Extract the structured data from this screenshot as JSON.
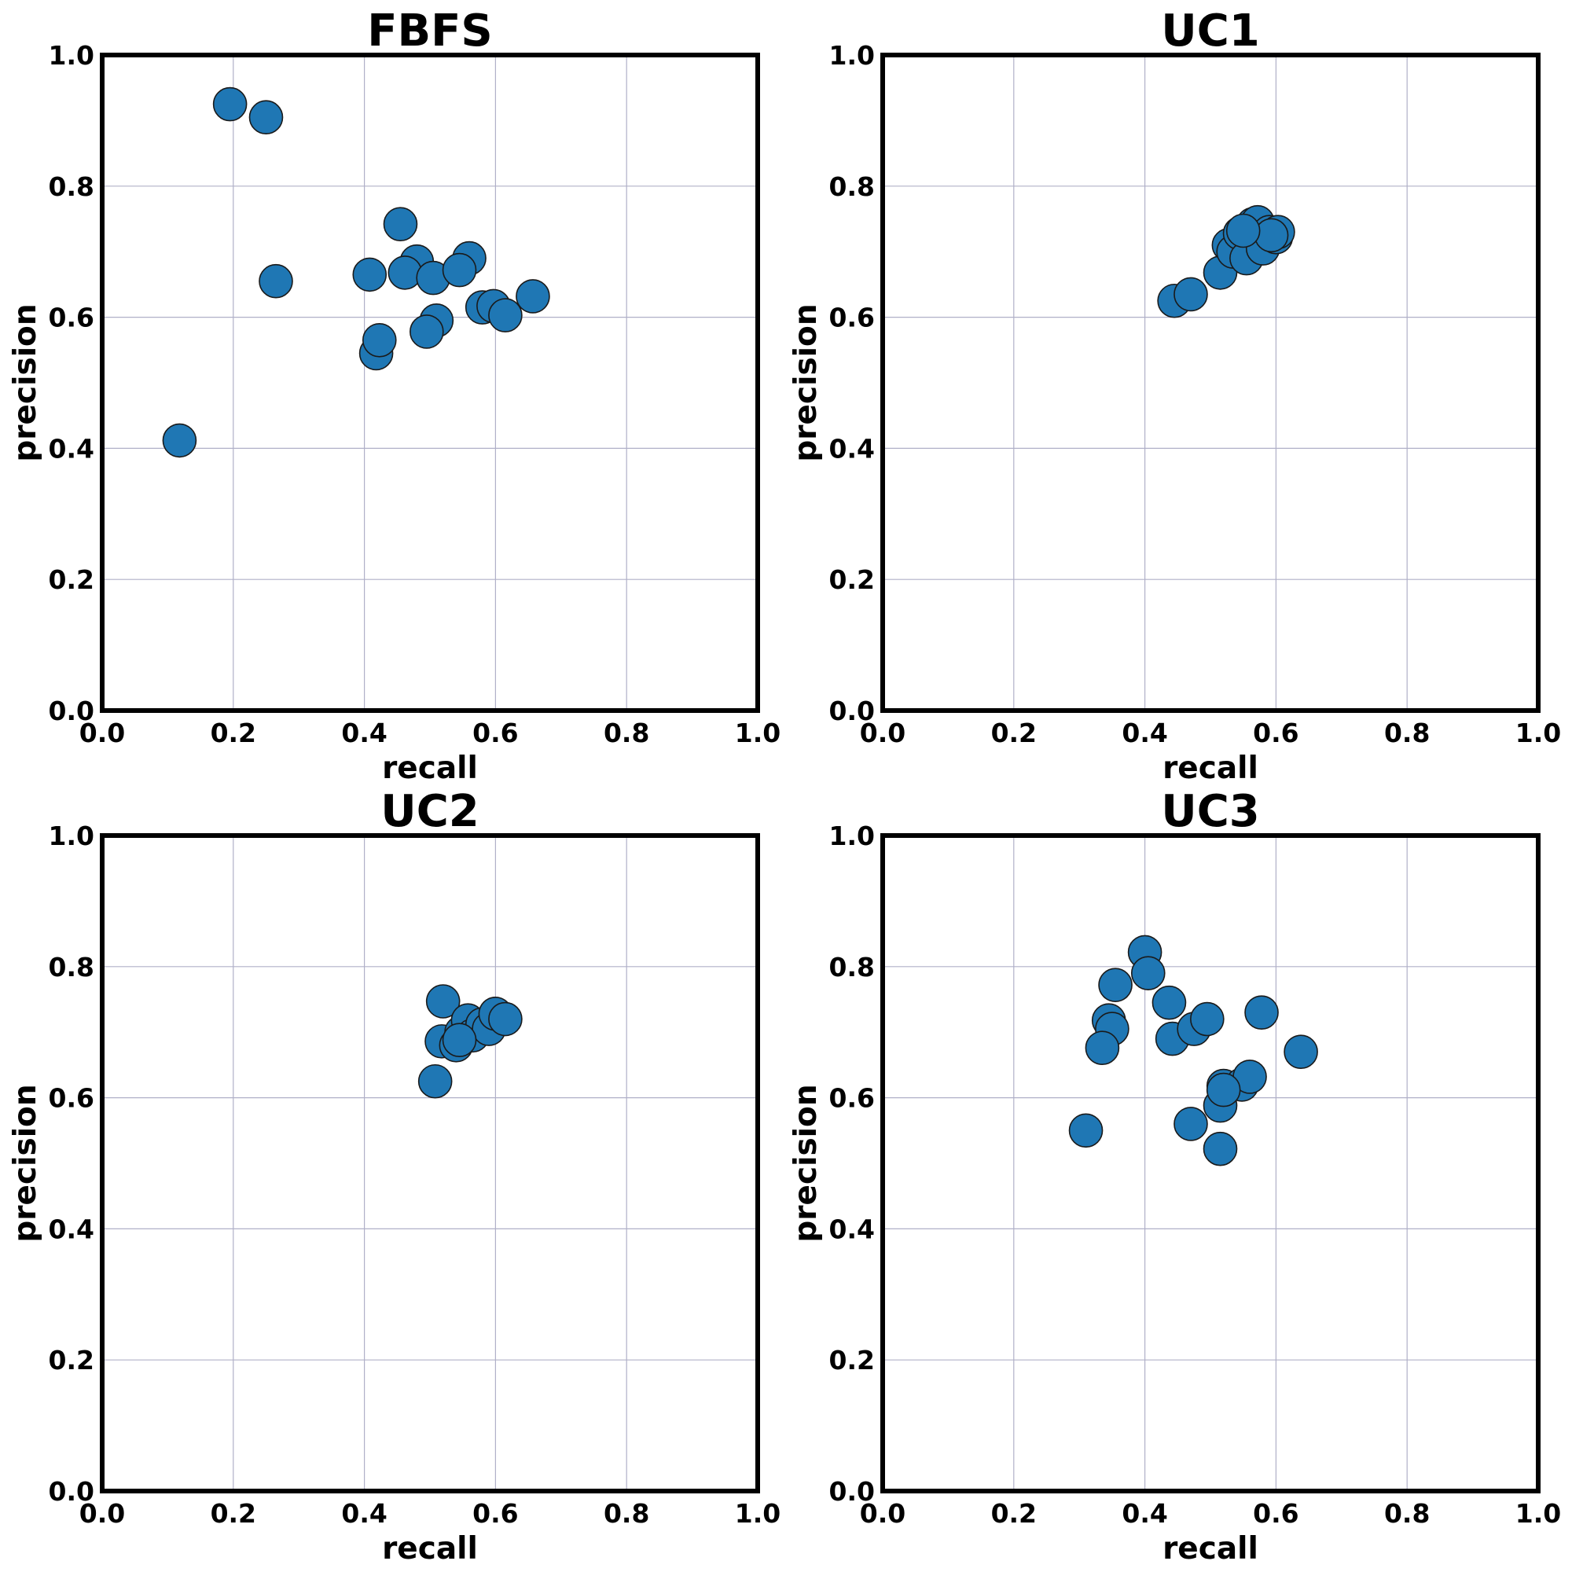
{
  "style": {
    "marker_color": "#1f77b4",
    "marker_edge": "#1a1a1a",
    "grid_color": "#b0b0c8"
  },
  "chart_data": [
    {
      "type": "scatter",
      "title": "FBFS",
      "xlabel": "recall",
      "ylabel": "precision",
      "xlim": [
        0,
        1
      ],
      "ylim": [
        0,
        1
      ],
      "grid": true,
      "xticks": [
        "0.0",
        "0.2",
        "0.4",
        "0.6",
        "0.8",
        "1.0"
      ],
      "yticks": [
        "0.0",
        "0.2",
        "0.4",
        "0.6",
        "0.8",
        "1.0"
      ],
      "points": [
        {
          "x": 0.195,
          "y": 0.925
        },
        {
          "x": 0.25,
          "y": 0.905
        },
        {
          "x": 0.265,
          "y": 0.655
        },
        {
          "x": 0.118,
          "y": 0.412
        },
        {
          "x": 0.455,
          "y": 0.742
        },
        {
          "x": 0.408,
          "y": 0.665
        },
        {
          "x": 0.48,
          "y": 0.685
        },
        {
          "x": 0.462,
          "y": 0.668
        },
        {
          "x": 0.505,
          "y": 0.66
        },
        {
          "x": 0.56,
          "y": 0.69
        },
        {
          "x": 0.545,
          "y": 0.672
        },
        {
          "x": 0.418,
          "y": 0.545
        },
        {
          "x": 0.423,
          "y": 0.565
        },
        {
          "x": 0.51,
          "y": 0.595
        },
        {
          "x": 0.495,
          "y": 0.578
        },
        {
          "x": 0.58,
          "y": 0.615
        },
        {
          "x": 0.597,
          "y": 0.617
        },
        {
          "x": 0.615,
          "y": 0.603
        },
        {
          "x": 0.657,
          "y": 0.632
        }
      ]
    },
    {
      "type": "scatter",
      "title": "UC1",
      "xlabel": "recall",
      "ylabel": "precision",
      "xlim": [
        0,
        1
      ],
      "ylim": [
        0,
        1
      ],
      "grid": true,
      "xticks": [
        "0.0",
        "0.2",
        "0.4",
        "0.6",
        "0.8",
        "1.0"
      ],
      "yticks": [
        "0.0",
        "0.2",
        "0.4",
        "0.6",
        "0.8",
        "1.0"
      ],
      "points": [
        {
          "x": 0.445,
          "y": 0.625
        },
        {
          "x": 0.47,
          "y": 0.635
        },
        {
          "x": 0.515,
          "y": 0.668
        },
        {
          "x": 0.528,
          "y": 0.71
        },
        {
          "x": 0.535,
          "y": 0.7
        },
        {
          "x": 0.545,
          "y": 0.728
        },
        {
          "x": 0.555,
          "y": 0.69
        },
        {
          "x": 0.565,
          "y": 0.742
        },
        {
          "x": 0.572,
          "y": 0.745
        },
        {
          "x": 0.58,
          "y": 0.705
        },
        {
          "x": 0.59,
          "y": 0.73
        },
        {
          "x": 0.6,
          "y": 0.722
        },
        {
          "x": 0.603,
          "y": 0.73
        },
        {
          "x": 0.593,
          "y": 0.725
        },
        {
          "x": 0.55,
          "y": 0.732
        }
      ]
    },
    {
      "type": "scatter",
      "title": "UC2",
      "xlabel": "recall",
      "ylabel": "precision",
      "xlim": [
        0,
        1
      ],
      "ylim": [
        0,
        1
      ],
      "grid": true,
      "xticks": [
        "0.0",
        "0.2",
        "0.4",
        "0.6",
        "0.8",
        "1.0"
      ],
      "yticks": [
        "0.0",
        "0.2",
        "0.4",
        "0.6",
        "0.8",
        "1.0"
      ],
      "points": [
        {
          "x": 0.508,
          "y": 0.625
        },
        {
          "x": 0.52,
          "y": 0.747
        },
        {
          "x": 0.518,
          "y": 0.686
        },
        {
          "x": 0.54,
          "y": 0.68
        },
        {
          "x": 0.548,
          "y": 0.7
        },
        {
          "x": 0.558,
          "y": 0.718
        },
        {
          "x": 0.565,
          "y": 0.695
        },
        {
          "x": 0.58,
          "y": 0.712
        },
        {
          "x": 0.59,
          "y": 0.705
        },
        {
          "x": 0.6,
          "y": 0.728
        },
        {
          "x": 0.615,
          "y": 0.72
        },
        {
          "x": 0.545,
          "y": 0.688
        }
      ]
    },
    {
      "type": "scatter",
      "title": "UC3",
      "xlabel": "recall",
      "ylabel": "precision",
      "xlim": [
        0,
        1
      ],
      "ylim": [
        0,
        1
      ],
      "grid": true,
      "xticks": [
        "0.0",
        "0.2",
        "0.4",
        "0.6",
        "0.8",
        "1.0"
      ],
      "yticks": [
        "0.0",
        "0.2",
        "0.4",
        "0.6",
        "0.8",
        "1.0"
      ],
      "points": [
        {
          "x": 0.4,
          "y": 0.822
        },
        {
          "x": 0.405,
          "y": 0.79
        },
        {
          "x": 0.355,
          "y": 0.772
        },
        {
          "x": 0.437,
          "y": 0.745
        },
        {
          "x": 0.345,
          "y": 0.718
        },
        {
          "x": 0.35,
          "y": 0.705
        },
        {
          "x": 0.335,
          "y": 0.676
        },
        {
          "x": 0.442,
          "y": 0.69
        },
        {
          "x": 0.475,
          "y": 0.705
        },
        {
          "x": 0.495,
          "y": 0.72
        },
        {
          "x": 0.578,
          "y": 0.73
        },
        {
          "x": 0.638,
          "y": 0.67
        },
        {
          "x": 0.31,
          "y": 0.55
        },
        {
          "x": 0.47,
          "y": 0.56
        },
        {
          "x": 0.515,
          "y": 0.522
        },
        {
          "x": 0.515,
          "y": 0.588
        },
        {
          "x": 0.52,
          "y": 0.618
        },
        {
          "x": 0.548,
          "y": 0.62
        },
        {
          "x": 0.56,
          "y": 0.632
        },
        {
          "x": 0.52,
          "y": 0.612
        }
      ]
    }
  ]
}
